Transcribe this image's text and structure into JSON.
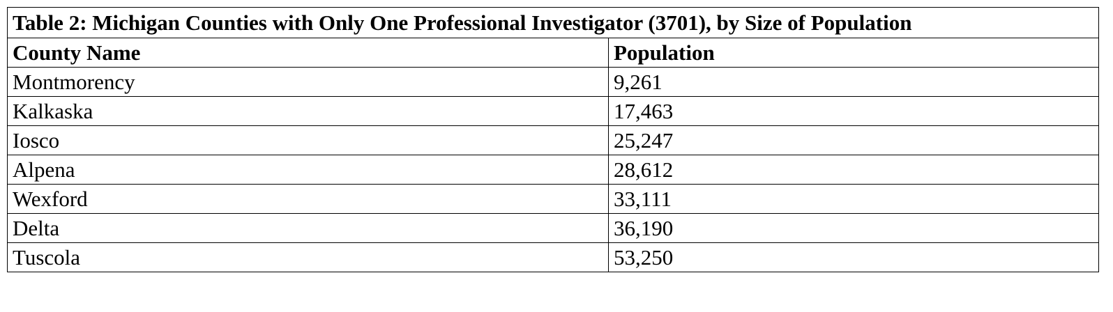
{
  "table": {
    "title": "Table 2: Michigan Counties with Only One Professional Investigator (3701), by Size of Population",
    "header": [
      "County Name",
      "Population"
    ],
    "rows": [
      [
        "Montmorency",
        "9,261"
      ],
      [
        "Kalkaska",
        "17,463"
      ],
      [
        "Iosco",
        "25,247"
      ],
      [
        "Alpena",
        "28,612"
      ],
      [
        "Wexford",
        "33,111"
      ],
      [
        "Delta",
        "36,190"
      ],
      [
        "Tuscola",
        "53,250"
      ]
    ]
  }
}
